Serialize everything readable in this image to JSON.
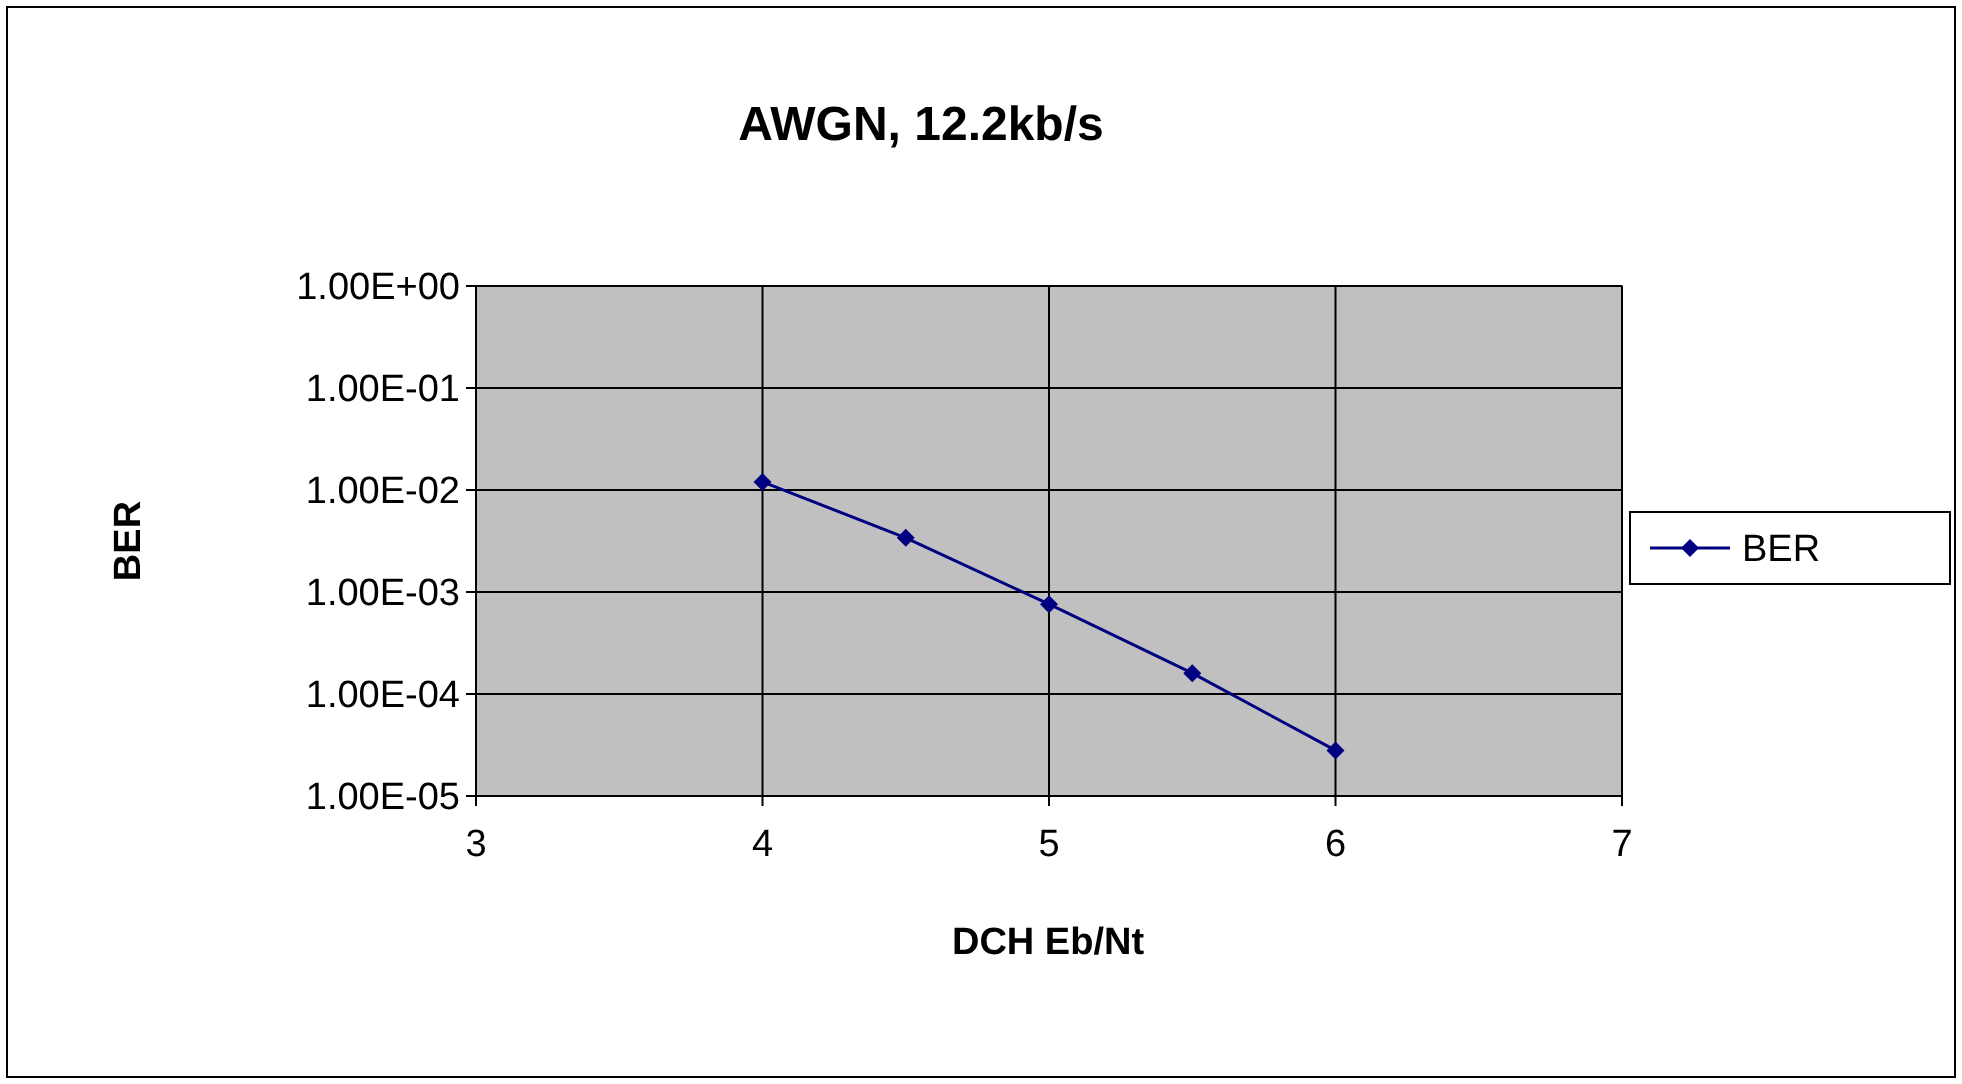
{
  "chart_data": {
    "type": "line",
    "title": "AWGN, 12.2kb/s",
    "xlabel": "DCH Eb/Nt",
    "ylabel": "BER",
    "x": [
      4,
      4.5,
      5,
      5.5,
      6
    ],
    "series": [
      {
        "name": "BER",
        "color": "#000080",
        "values": [
          0.012,
          0.0034,
          0.00076,
          0.00016,
          2.8e-05
        ]
      }
    ],
    "xlim": [
      3,
      7
    ],
    "xticks": [
      3,
      4,
      5,
      6,
      7
    ],
    "ylim": [
      1e-05,
      1
    ],
    "yticks": [
      {
        "value": 1,
        "label": "1.00E+00"
      },
      {
        "value": 0.1,
        "label": "1.00E-01"
      },
      {
        "value": 0.01,
        "label": "1.00E-02"
      },
      {
        "value": 0.001,
        "label": "1.00E-03"
      },
      {
        "value": 0.0001,
        "label": "1.00E-04"
      },
      {
        "value": 1e-05,
        "label": "1.00E-05"
      }
    ],
    "log": "y",
    "grid": true,
    "legend": "right",
    "marker": "diamond",
    "line_style": "solid"
  }
}
